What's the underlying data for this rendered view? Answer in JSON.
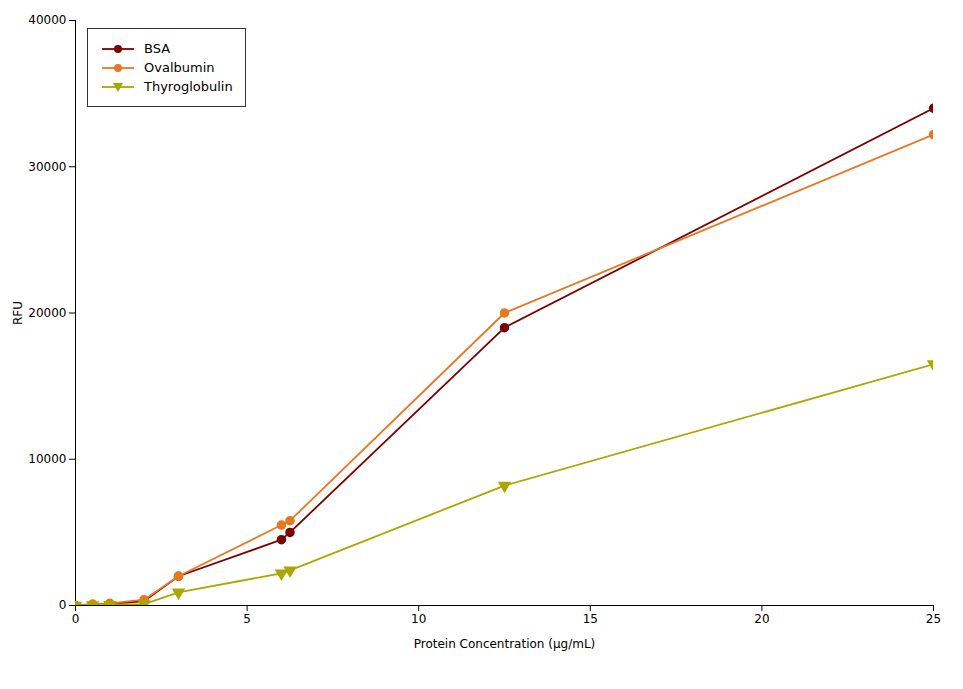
{
  "chart_data": {
    "type": "line",
    "xlabel": "Protein Concentration (μg/mL)",
    "ylabel": "RFU",
    "x": [
      0,
      0.5,
      1,
      2,
      3,
      6,
      6.25,
      12.5,
      25
    ],
    "series": [
      {
        "name": "BSA",
        "color": "#7B0000",
        "marker": "circle",
        "values": [
          0,
          50,
          100,
          300,
          2000,
          4500,
          5000,
          19000,
          34000
        ]
      },
      {
        "name": "Ovalbumin",
        "color": "#E87722",
        "marker": "circle",
        "values": [
          0,
          100,
          150,
          400,
          2000,
          5500,
          5800,
          20000,
          32200
        ]
      },
      {
        "name": "Thyroglobulin",
        "color": "#A8A800",
        "marker": "triangle-down",
        "values": [
          0,
          30,
          50,
          100,
          900,
          2200,
          2400,
          8200,
          16500
        ]
      }
    ],
    "xlim": [
      0,
      25
    ],
    "ylim": [
      0,
      40000
    ],
    "xticks": [
      0,
      5,
      10,
      15,
      20,
      25
    ],
    "yticks": [
      0,
      10000,
      20000,
      30000,
      40000
    ],
    "legend": "upper left",
    "grid": false
  }
}
